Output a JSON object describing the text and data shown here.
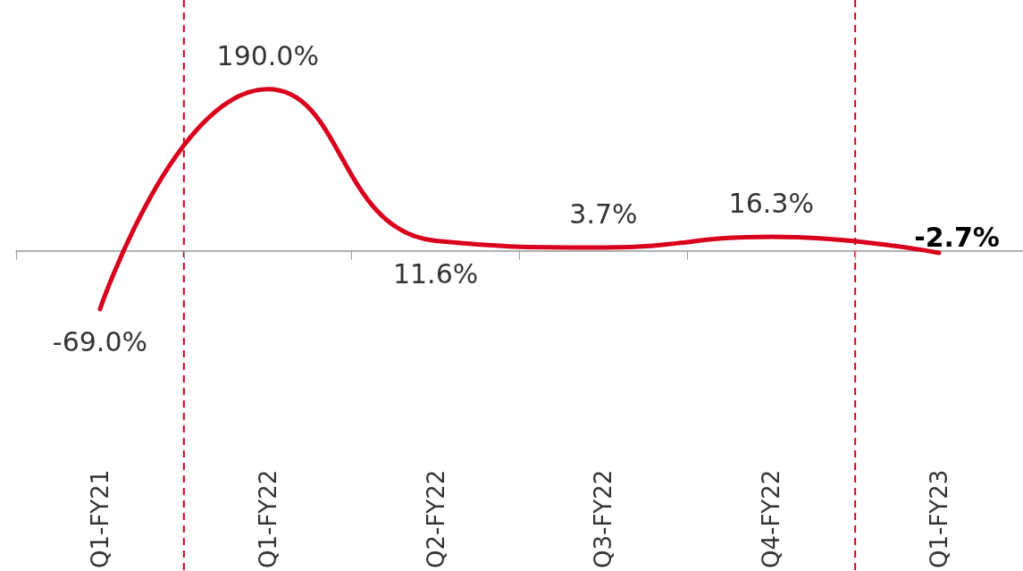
{
  "chart_data": {
    "type": "line",
    "categories": [
      "Q1-FY21",
      "Q1-FY22",
      "Q2-FY22",
      "Q3-FY22",
      "Q4-FY22",
      "Q1-FY23"
    ],
    "series": [
      {
        "color": "#d9001b",
        "values": [
          -69.0,
          190.0,
          11.6,
          3.7,
          16.3,
          -2.7
        ],
        "value_labels": [
          "-69.0%",
          "190.0%",
          "11.6%",
          "3.7%",
          "16.3%",
          "-2.7%"
        ]
      }
    ],
    "marker": "none",
    "grid": false
  }
}
